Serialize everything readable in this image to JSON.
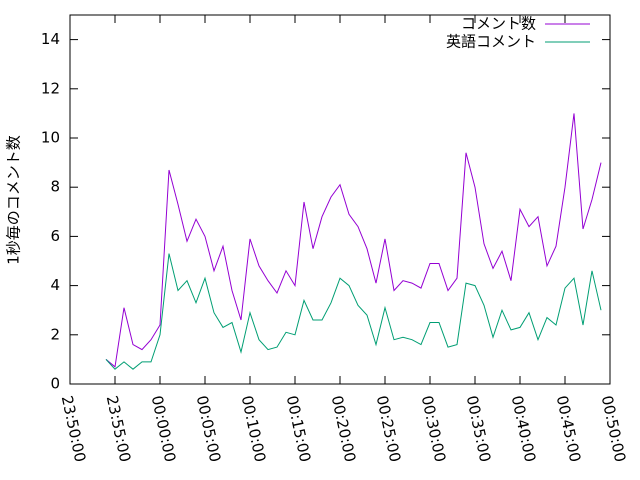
{
  "chart_data": {
    "type": "line",
    "y_label": "1秒毎のコメント数",
    "x": [
      "23:54:00",
      "23:55:00",
      "23:56:00",
      "23:57:00",
      "23:58:00",
      "23:59:00",
      "00:00:00",
      "00:01:00",
      "00:02:00",
      "00:03:00",
      "00:04:00",
      "00:05:00",
      "00:06:00",
      "00:07:00",
      "00:08:00",
      "00:09:00",
      "00:10:00",
      "00:11:00",
      "00:12:00",
      "00:13:00",
      "00:14:00",
      "00:15:00",
      "00:16:00",
      "00:17:00",
      "00:18:00",
      "00:19:00",
      "00:20:00",
      "00:21:00",
      "00:22:00",
      "00:23:00",
      "00:24:00",
      "00:25:00",
      "00:26:00",
      "00:27:00",
      "00:28:00",
      "00:29:00",
      "00:30:00",
      "00:31:00",
      "00:32:00",
      "00:33:00",
      "00:34:00",
      "00:35:00",
      "00:36:00",
      "00:37:00",
      "00:38:00",
      "00:39:00",
      "00:40:00",
      "00:41:00",
      "00:42:00",
      "00:43:00",
      "00:44:00",
      "00:45:00",
      "00:46:00",
      "00:47:00",
      "00:48:00",
      "00:49:00"
    ],
    "series": [
      {
        "name": "コメント数",
        "color": "#9400d3",
        "values": [
          1.0,
          0.7,
          3.1,
          1.6,
          1.4,
          1.8,
          2.4,
          8.7,
          7.3,
          5.8,
          6.7,
          6.0,
          4.6,
          5.6,
          3.8,
          2.6,
          5.9,
          4.8,
          4.2,
          3.7,
          4.6,
          4.0,
          7.4,
          5.5,
          6.8,
          7.6,
          8.1,
          6.9,
          6.4,
          5.5,
          4.1,
          5.9,
          3.8,
          4.2,
          4.1,
          3.9,
          4.9,
          4.9,
          3.8,
          4.3,
          9.4,
          8.0,
          5.7,
          4.7,
          5.4,
          4.2,
          7.1,
          6.4,
          6.8,
          4.8,
          5.6,
          8.0,
          11.0,
          6.3,
          7.5,
          9.0
        ]
      },
      {
        "name": "英語コメント",
        "color": "#009e73",
        "values": [
          1.0,
          0.6,
          0.9,
          0.6,
          0.9,
          0.9,
          2.0,
          5.3,
          3.8,
          4.2,
          3.3,
          4.3,
          2.9,
          2.3,
          2.5,
          1.3,
          2.9,
          1.8,
          1.4,
          1.5,
          2.1,
          2.0,
          3.4,
          2.6,
          2.6,
          3.3,
          4.3,
          4.0,
          3.2,
          2.8,
          1.6,
          3.1,
          1.8,
          1.9,
          1.8,
          1.6,
          2.5,
          2.5,
          1.5,
          1.6,
          4.1,
          4.0,
          3.2,
          1.9,
          3.0,
          2.2,
          2.3,
          2.9,
          1.8,
          2.7,
          2.4,
          3.9,
          4.3,
          2.4,
          4.6,
          3.0
        ]
      }
    ],
    "xlim": [
      "23:50:00",
      "00:50:00"
    ],
    "xticks": [
      "23:50:00",
      "23:55:00",
      "00:00:00",
      "00:05:00",
      "00:10:00",
      "00:15:00",
      "00:20:00",
      "00:25:00",
      "00:30:00",
      "00:35:00",
      "00:40:00",
      "00:45:00",
      "00:50:00"
    ],
    "ylim": [
      0,
      15
    ],
    "yticks": [
      0,
      2,
      4,
      6,
      8,
      10,
      12,
      14
    ],
    "legend": "top-right"
  }
}
